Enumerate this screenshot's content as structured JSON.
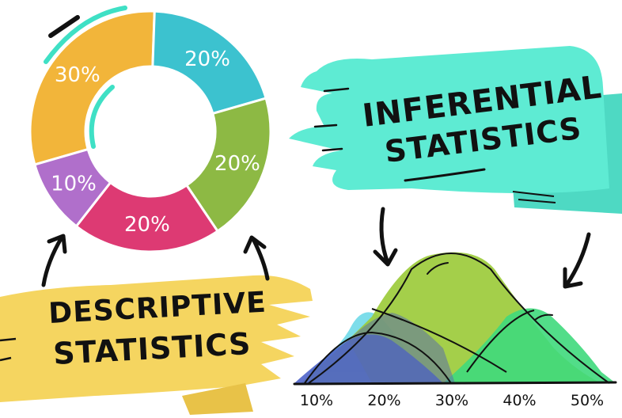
{
  "donut": {
    "segments": [
      {
        "label": "30%",
        "value": 30,
        "color": "#F2B53A"
      },
      {
        "label": "20%",
        "value": 20,
        "color": "#3CC2CF"
      },
      {
        "label": "20%",
        "value": 20,
        "color": "#8DB944"
      },
      {
        "label": "20%",
        "value": 20,
        "color": "#DD3A73"
      },
      {
        "label": "10%",
        "value": 10,
        "color": "#B06FCB"
      }
    ]
  },
  "banners": {
    "inferential": {
      "line1": "INFERENTIAL",
      "line2": "STATISTICS",
      "color": "#5EEBD3"
    },
    "descriptive": {
      "line1": "DESCRIPTIVE",
      "line2": "STATISTICS",
      "color": "#F5D560"
    }
  },
  "distribution": {
    "ticks": [
      "10%",
      "20%",
      "30%",
      "40%",
      "50%"
    ],
    "colors": {
      "left": "#4E63C9",
      "middle": "#9CCB3B",
      "right": "#3FD97C",
      "cyan": "#6FD9E8"
    }
  }
}
